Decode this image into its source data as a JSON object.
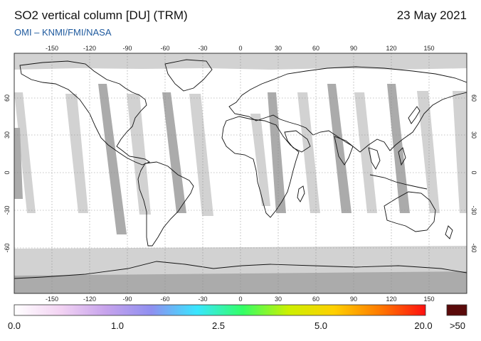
{
  "header": {
    "title": "SO2 vertical column [DU] (TRM)",
    "date": "23 May 2021",
    "source": "OMI  –  KNMI/FMI/NASA"
  },
  "map": {
    "projection": "plate-carree",
    "lon_ticks": [
      "-150",
      "-120",
      "-90",
      "-60",
      "-30",
      "0",
      "30",
      "60",
      "90",
      "120",
      "150"
    ],
    "lat_ticks": [
      "60",
      "30",
      "0",
      "-30",
      "-60"
    ],
    "colors": {
      "no_data": "#d2d2d2",
      "night": "#ababab",
      "background": "#ffffff"
    }
  },
  "colorbar": {
    "labels": [
      "0.0",
      "1.0",
      "2.5",
      "5.0",
      "20.0"
    ],
    "overflow_label": ">50",
    "colors": [
      "#ffffff",
      "#f3d4f3",
      "#c7a3ec",
      "#8f8ff0",
      "#39e6ff",
      "#33ff66",
      "#ccf000",
      "#ffd000",
      "#ff7a00",
      "#ff1010"
    ],
    "overflow_color": "#5a0a0a"
  }
}
